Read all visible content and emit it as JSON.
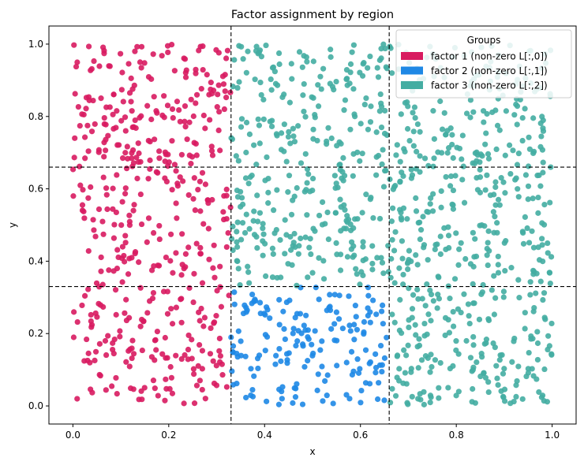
{
  "chart_data": {
    "type": "scatter",
    "title": "Factor assignment by region",
    "xlabel": "x",
    "ylabel": "y",
    "xlim": [
      -0.05,
      1.05
    ],
    "ylim": [
      -0.05,
      1.05
    ],
    "xticks": [
      0.0,
      0.2,
      0.4,
      0.6,
      0.8,
      1.0
    ],
    "yticks": [
      0.0,
      0.2,
      0.4,
      0.6,
      0.8,
      1.0
    ],
    "xtick_labels": [
      "0.0",
      "0.2",
      "0.4",
      "0.6",
      "0.8",
      "1.0"
    ],
    "ytick_labels": [
      "0.0",
      "0.2",
      "0.4",
      "0.6",
      "0.8",
      "1.0"
    ],
    "grid": false,
    "reference_lines": {
      "vertical": [
        0.33,
        0.66
      ],
      "horizontal": [
        0.33,
        0.66
      ],
      "style": "dashed",
      "color": "#000000"
    },
    "legend": {
      "title": "Groups",
      "placement": "top-right",
      "entries": [
        {
          "label": "factor 1 (non-zero L[:,0])",
          "color": "#d81b60"
        },
        {
          "label": "factor 2 (non-zero L[:,1])",
          "color": "#1e88e5"
        },
        {
          "label": "factor 3 (non-zero L[:,2])",
          "color": "#44ada2"
        }
      ]
    },
    "groups": [
      {
        "name": "factor 1 (non-zero L[:,0])",
        "color": "#d81b60",
        "region": "x < 0.33"
      },
      {
        "name": "factor 2 (non-zero L[:,1])",
        "color": "#1e88e5",
        "region": "0.33 ≤ x < 0.66 and y < 0.33"
      },
      {
        "name": "factor 3 (non-zero L[:,2])",
        "color": "#44ada2",
        "region": "x ≥ 0.33 and not factor 2"
      }
    ],
    "points": {
      "distribution": "uniform",
      "domain": [
        [
          0,
          1
        ],
        [
          0,
          1
        ]
      ],
      "count": 1500,
      "seed": 42
    }
  }
}
